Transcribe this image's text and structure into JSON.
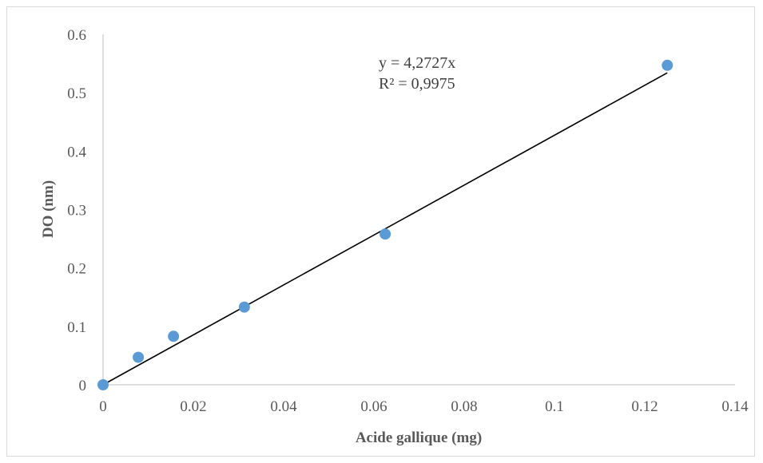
{
  "chart_data": {
    "type": "scatter",
    "title": "",
    "xlabel": "Acide gallique (mg)",
    "ylabel": "DO (nm)",
    "xlim": [
      0,
      0.14
    ],
    "ylim": [
      0,
      0.6
    ],
    "xticks": [
      0,
      0.02,
      0.04,
      0.06,
      0.08,
      0.1,
      0.12,
      0.14
    ],
    "yticks": [
      0,
      0.1,
      0.2,
      0.3,
      0.4,
      0.5,
      0.6
    ],
    "grid": false,
    "legend": false,
    "series": [
      {
        "x": [
          0,
          0.0078,
          0.0156,
          0.0313,
          0.0625,
          0.125
        ],
        "y": [
          0,
          0.047,
          0.083,
          0.133,
          0.258,
          0.547
        ],
        "color": "#5b9bd5"
      }
    ],
    "trendline": {
      "type": "linear",
      "slope": 4.2727,
      "intercept": 0,
      "x_range": [
        0,
        0.125
      ],
      "color": "#000000"
    },
    "annotations": {
      "equation": "y = 4,2727x",
      "r_squared": "R² = 0,9975"
    },
    "axis_color": "#bfbfbf"
  }
}
